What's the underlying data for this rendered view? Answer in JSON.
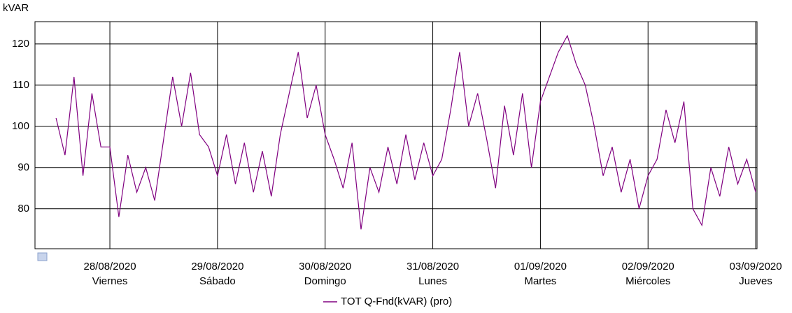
{
  "chart_data": {
    "type": "line",
    "y_label": "kVAR",
    "x": [
      12,
      14,
      16,
      18,
      20,
      22,
      24,
      26,
      28,
      30,
      32,
      34,
      36,
      38,
      40,
      42,
      44,
      46,
      48,
      50,
      52,
      54,
      56,
      58,
      60,
      62,
      64,
      66,
      68,
      70,
      72,
      74,
      76,
      78,
      80,
      82,
      84,
      86,
      88,
      90,
      92,
      94,
      96,
      98,
      100,
      102,
      104,
      106,
      108,
      110,
      112,
      114,
      116,
      118,
      120,
      122,
      124,
      126,
      128,
      130,
      132,
      134,
      136,
      138,
      140,
      142,
      144,
      146,
      148,
      150,
      152,
      154,
      156,
      158,
      160,
      162,
      164,
      166,
      168
    ],
    "series": [
      {
        "name": "TOT Q-Fnd(kVAR) (pro)",
        "color": "#800080",
        "values": [
          102,
          93,
          112,
          88,
          108,
          95,
          95,
          78,
          93,
          84,
          90,
          82,
          97,
          112,
          100,
          113,
          98,
          95,
          88,
          98,
          86,
          96,
          84,
          94,
          83,
          98,
          108,
          118,
          102,
          110,
          98,
          92,
          85,
          96,
          75,
          90,
          84,
          95,
          86,
          98,
          87,
          96,
          88,
          92,
          104,
          118,
          100,
          108,
          97,
          85,
          105,
          93,
          108,
          90,
          106,
          112,
          118,
          122,
          115,
          110,
          100,
          88,
          95,
          84,
          92,
          80,
          88,
          92,
          104,
          96,
          106,
          80,
          76,
          90,
          83,
          95,
          86,
          92,
          84
        ]
      }
    ],
    "xlim": [
      7.3,
      168.3
    ],
    "xticks": [
      {
        "value": 24,
        "label": [
          "28/08/2020",
          "Viernes"
        ]
      },
      {
        "value": 48,
        "label": [
          "29/08/2020",
          "Sábado"
        ]
      },
      {
        "value": 72,
        "label": [
          "30/08/2020",
          "Domingo"
        ]
      },
      {
        "value": 96,
        "label": [
          "31/08/2020",
          "Lunes"
        ]
      },
      {
        "value": 120,
        "label": [
          "01/09/2020",
          "Martes"
        ]
      },
      {
        "value": 144,
        "label": [
          "02/09/2020",
          "Miércoles"
        ]
      },
      {
        "value": 168,
        "label": [
          "03/09/2020",
          "Jueves"
        ]
      }
    ],
    "ylim": [
      70.3,
      125.4
    ],
    "yticks": [
      80,
      90,
      100,
      110,
      120
    ],
    "grid": true,
    "legend": "bottom"
  }
}
